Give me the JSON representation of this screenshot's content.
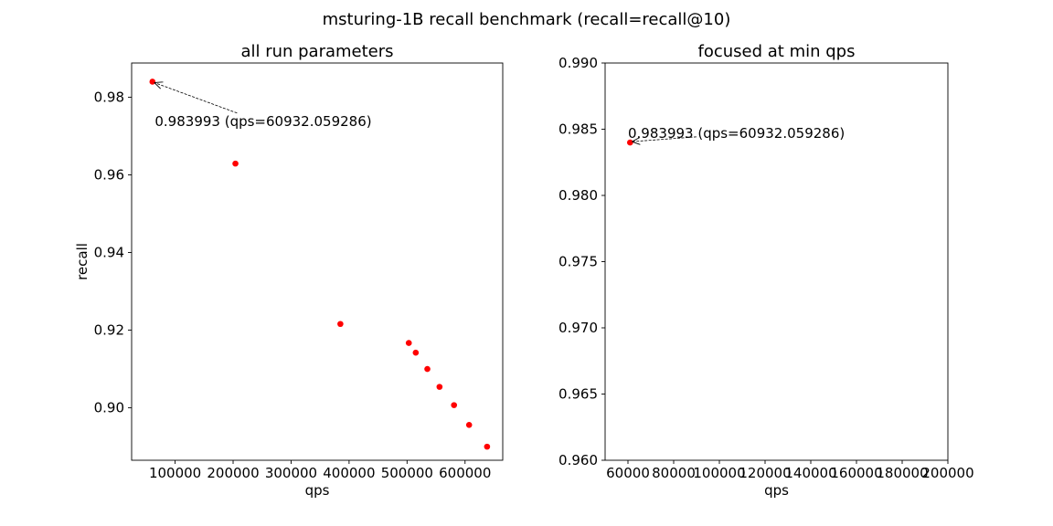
{
  "figure_title": "msturing-1B recall benchmark (recall=recall@10)",
  "colors": {
    "marker": "#ff0000",
    "axis": "#000000",
    "background": "#ffffff"
  },
  "chart_data": [
    {
      "type": "scatter",
      "title": "all run parameters",
      "xlabel": "qps",
      "ylabel": "recall",
      "xlim": [
        25000,
        665000
      ],
      "ylim": [
        0.8865,
        0.9888
      ],
      "xticks": [
        100000,
        200000,
        300000,
        400000,
        500000,
        600000
      ],
      "yticks": [
        0.9,
        0.92,
        0.94,
        0.96,
        0.98
      ],
      "ytick_decimals": 2,
      "points": [
        {
          "x": 60932.059286,
          "y": 0.983993
        },
        {
          "x": 204000,
          "y": 0.9629
        },
        {
          "x": 385000,
          "y": 0.9216
        },
        {
          "x": 503000,
          "y": 0.9167
        },
        {
          "x": 515000,
          "y": 0.9142
        },
        {
          "x": 535000,
          "y": 0.91
        },
        {
          "x": 556000,
          "y": 0.9054
        },
        {
          "x": 581000,
          "y": 0.9007
        },
        {
          "x": 607000,
          "y": 0.8956
        },
        {
          "x": 638000,
          "y": 0.89
        }
      ],
      "annotation": {
        "text": "0.983993 (qps=60932.059286)",
        "x": 60932.059286,
        "y": 0.983993,
        "text_x": 65000,
        "text_y": 0.9738
      }
    },
    {
      "type": "scatter",
      "title": "focused at min qps",
      "xlabel": "qps",
      "ylabel": "",
      "xlim": [
        50000,
        200000
      ],
      "ylim": [
        0.96,
        0.99
      ],
      "xticks": [
        60000,
        80000,
        100000,
        120000,
        140000,
        160000,
        180000,
        200000
      ],
      "yticks": [
        0.96,
        0.965,
        0.97,
        0.975,
        0.98,
        0.985,
        0.99
      ],
      "ytick_decimals": 3,
      "points": [
        {
          "x": 60932.059286,
          "y": 0.983993
        }
      ],
      "annotation": {
        "text": "0.983993 (qps=60932.059286)",
        "x": 60932.059286,
        "y": 0.983993,
        "text_x": 60000,
        "text_y": 0.9847
      }
    }
  ]
}
